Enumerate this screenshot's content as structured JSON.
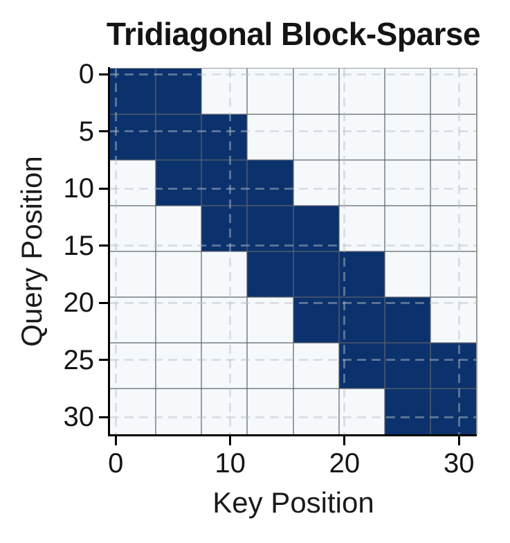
{
  "title": "Tridiagonal Block-Sparse",
  "chart_data": {
    "type": "heatmap",
    "title": "Tridiagonal Block-Sparse",
    "xlabel": "Key Position",
    "ylabel": "Query Position",
    "matrix_size": 32,
    "block_size": 4,
    "num_blocks": 8,
    "pattern": "tridiagonal block-sparse (block i,j filled iff |i-j| <= 1)",
    "block_mask": [
      [
        1,
        1,
        0,
        0,
        0,
        0,
        0,
        0
      ],
      [
        1,
        1,
        1,
        0,
        0,
        0,
        0,
        0
      ],
      [
        0,
        1,
        1,
        1,
        0,
        0,
        0,
        0
      ],
      [
        0,
        0,
        1,
        1,
        1,
        0,
        0,
        0
      ],
      [
        0,
        0,
        0,
        1,
        1,
        1,
        0,
        0
      ],
      [
        0,
        0,
        0,
        0,
        1,
        1,
        1,
        0
      ],
      [
        0,
        0,
        0,
        0,
        0,
        1,
        1,
        1
      ],
      [
        0,
        0,
        0,
        0,
        0,
        0,
        1,
        1
      ]
    ],
    "x_ticks": [
      0,
      10,
      20,
      30
    ],
    "y_ticks": [
      0,
      5,
      10,
      15,
      20,
      25,
      30
    ],
    "xlim": [
      -0.5,
      31.5
    ],
    "ylim": [
      31.5,
      -0.5
    ],
    "grid": {
      "solid_lines_at_block_boundaries": [
        3.5,
        7.5,
        11.5,
        15.5,
        19.5,
        23.5,
        27.5
      ],
      "dashed_lines_at_tick_positions": true
    },
    "colors": {
      "filled_block": "#0c326d",
      "empty_block": "#f6f9fc",
      "solid_grid": "rgba(92,98,108,0.62)",
      "dashed_grid": "rgba(186,191,201,0.45)",
      "spine": "#000000",
      "text": "#141414"
    }
  }
}
